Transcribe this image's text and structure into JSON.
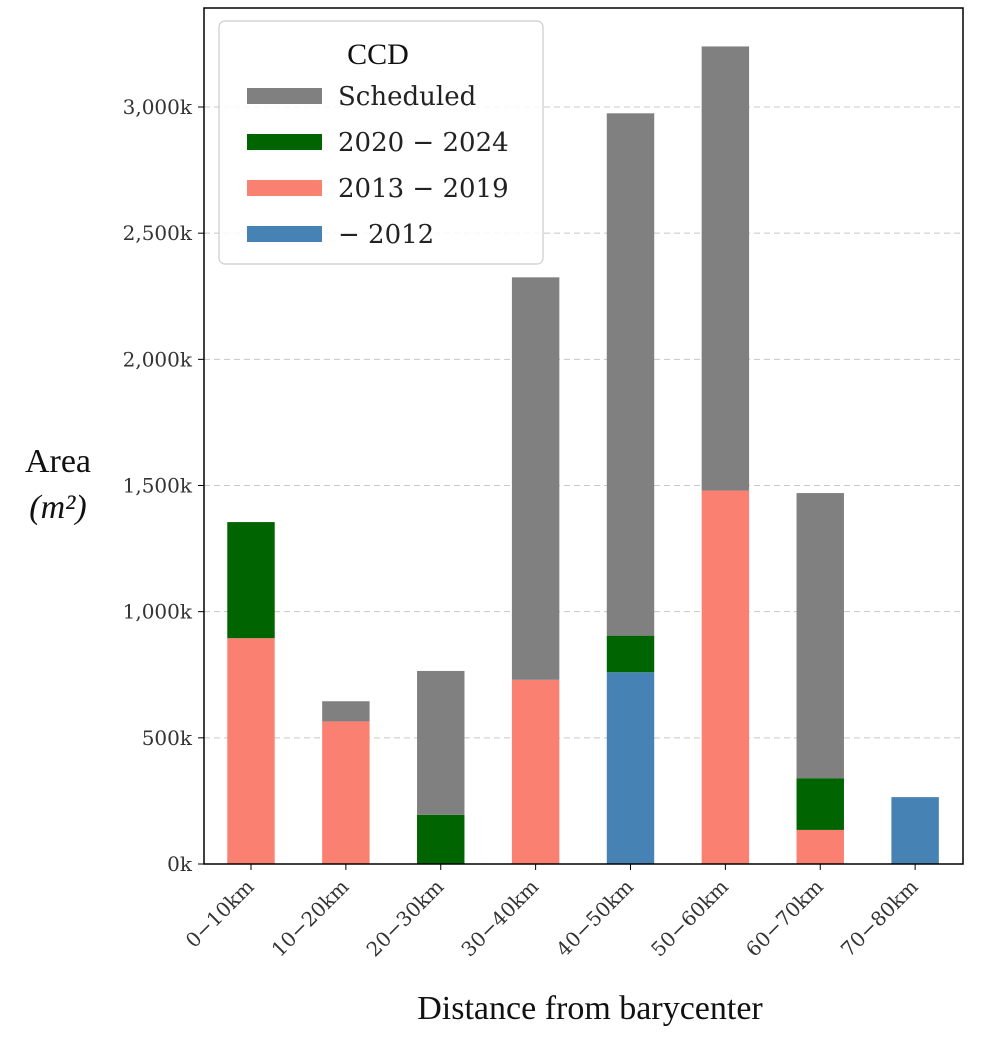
{
  "chart_data": {
    "type": "bar",
    "stacked": true,
    "categories": [
      "0−10km",
      "10−20km",
      "20−30km",
      "30−40km",
      "40−50km",
      "50−60km",
      "60−70km",
      "70−80km"
    ],
    "series": [
      {
        "name": "− 2012",
        "color": "#4682b4",
        "values": [
          0,
          0,
          0,
          0,
          760,
          0,
          0,
          265
        ]
      },
      {
        "name": "2013 − 2019",
        "color": "#fa8072",
        "values": [
          895,
          565,
          0,
          730,
          0,
          1480,
          135,
          0
        ]
      },
      {
        "name": "2020 − 2024",
        "color": "#006400",
        "values": [
          460,
          0,
          195,
          0,
          145,
          0,
          205,
          0
        ]
      },
      {
        "name": "Scheduled",
        "color": "#808080",
        "values": [
          0,
          80,
          570,
          1595,
          2070,
          1760,
          1130,
          0
        ]
      }
    ],
    "legend_order": [
      "Scheduled",
      "2020 − 2024",
      "2013 − 2019",
      "− 2012"
    ],
    "legend_title": "CCD",
    "legend_position": "top-left",
    "ylim": [
      0,
      3400
    ],
    "yticks": [
      0,
      500,
      1000,
      1500,
      2000,
      2500,
      3000
    ],
    "ytick_labels": [
      "0k",
      "500k",
      "1,000k",
      "1,500k",
      "2,000k",
      "2,500k",
      "3,000k"
    ],
    "ylabel_line1": "Area",
    "ylabel_line2": "(m²)",
    "xlabel": "Distance from barycenter",
    "grid": "y-dashed"
  }
}
